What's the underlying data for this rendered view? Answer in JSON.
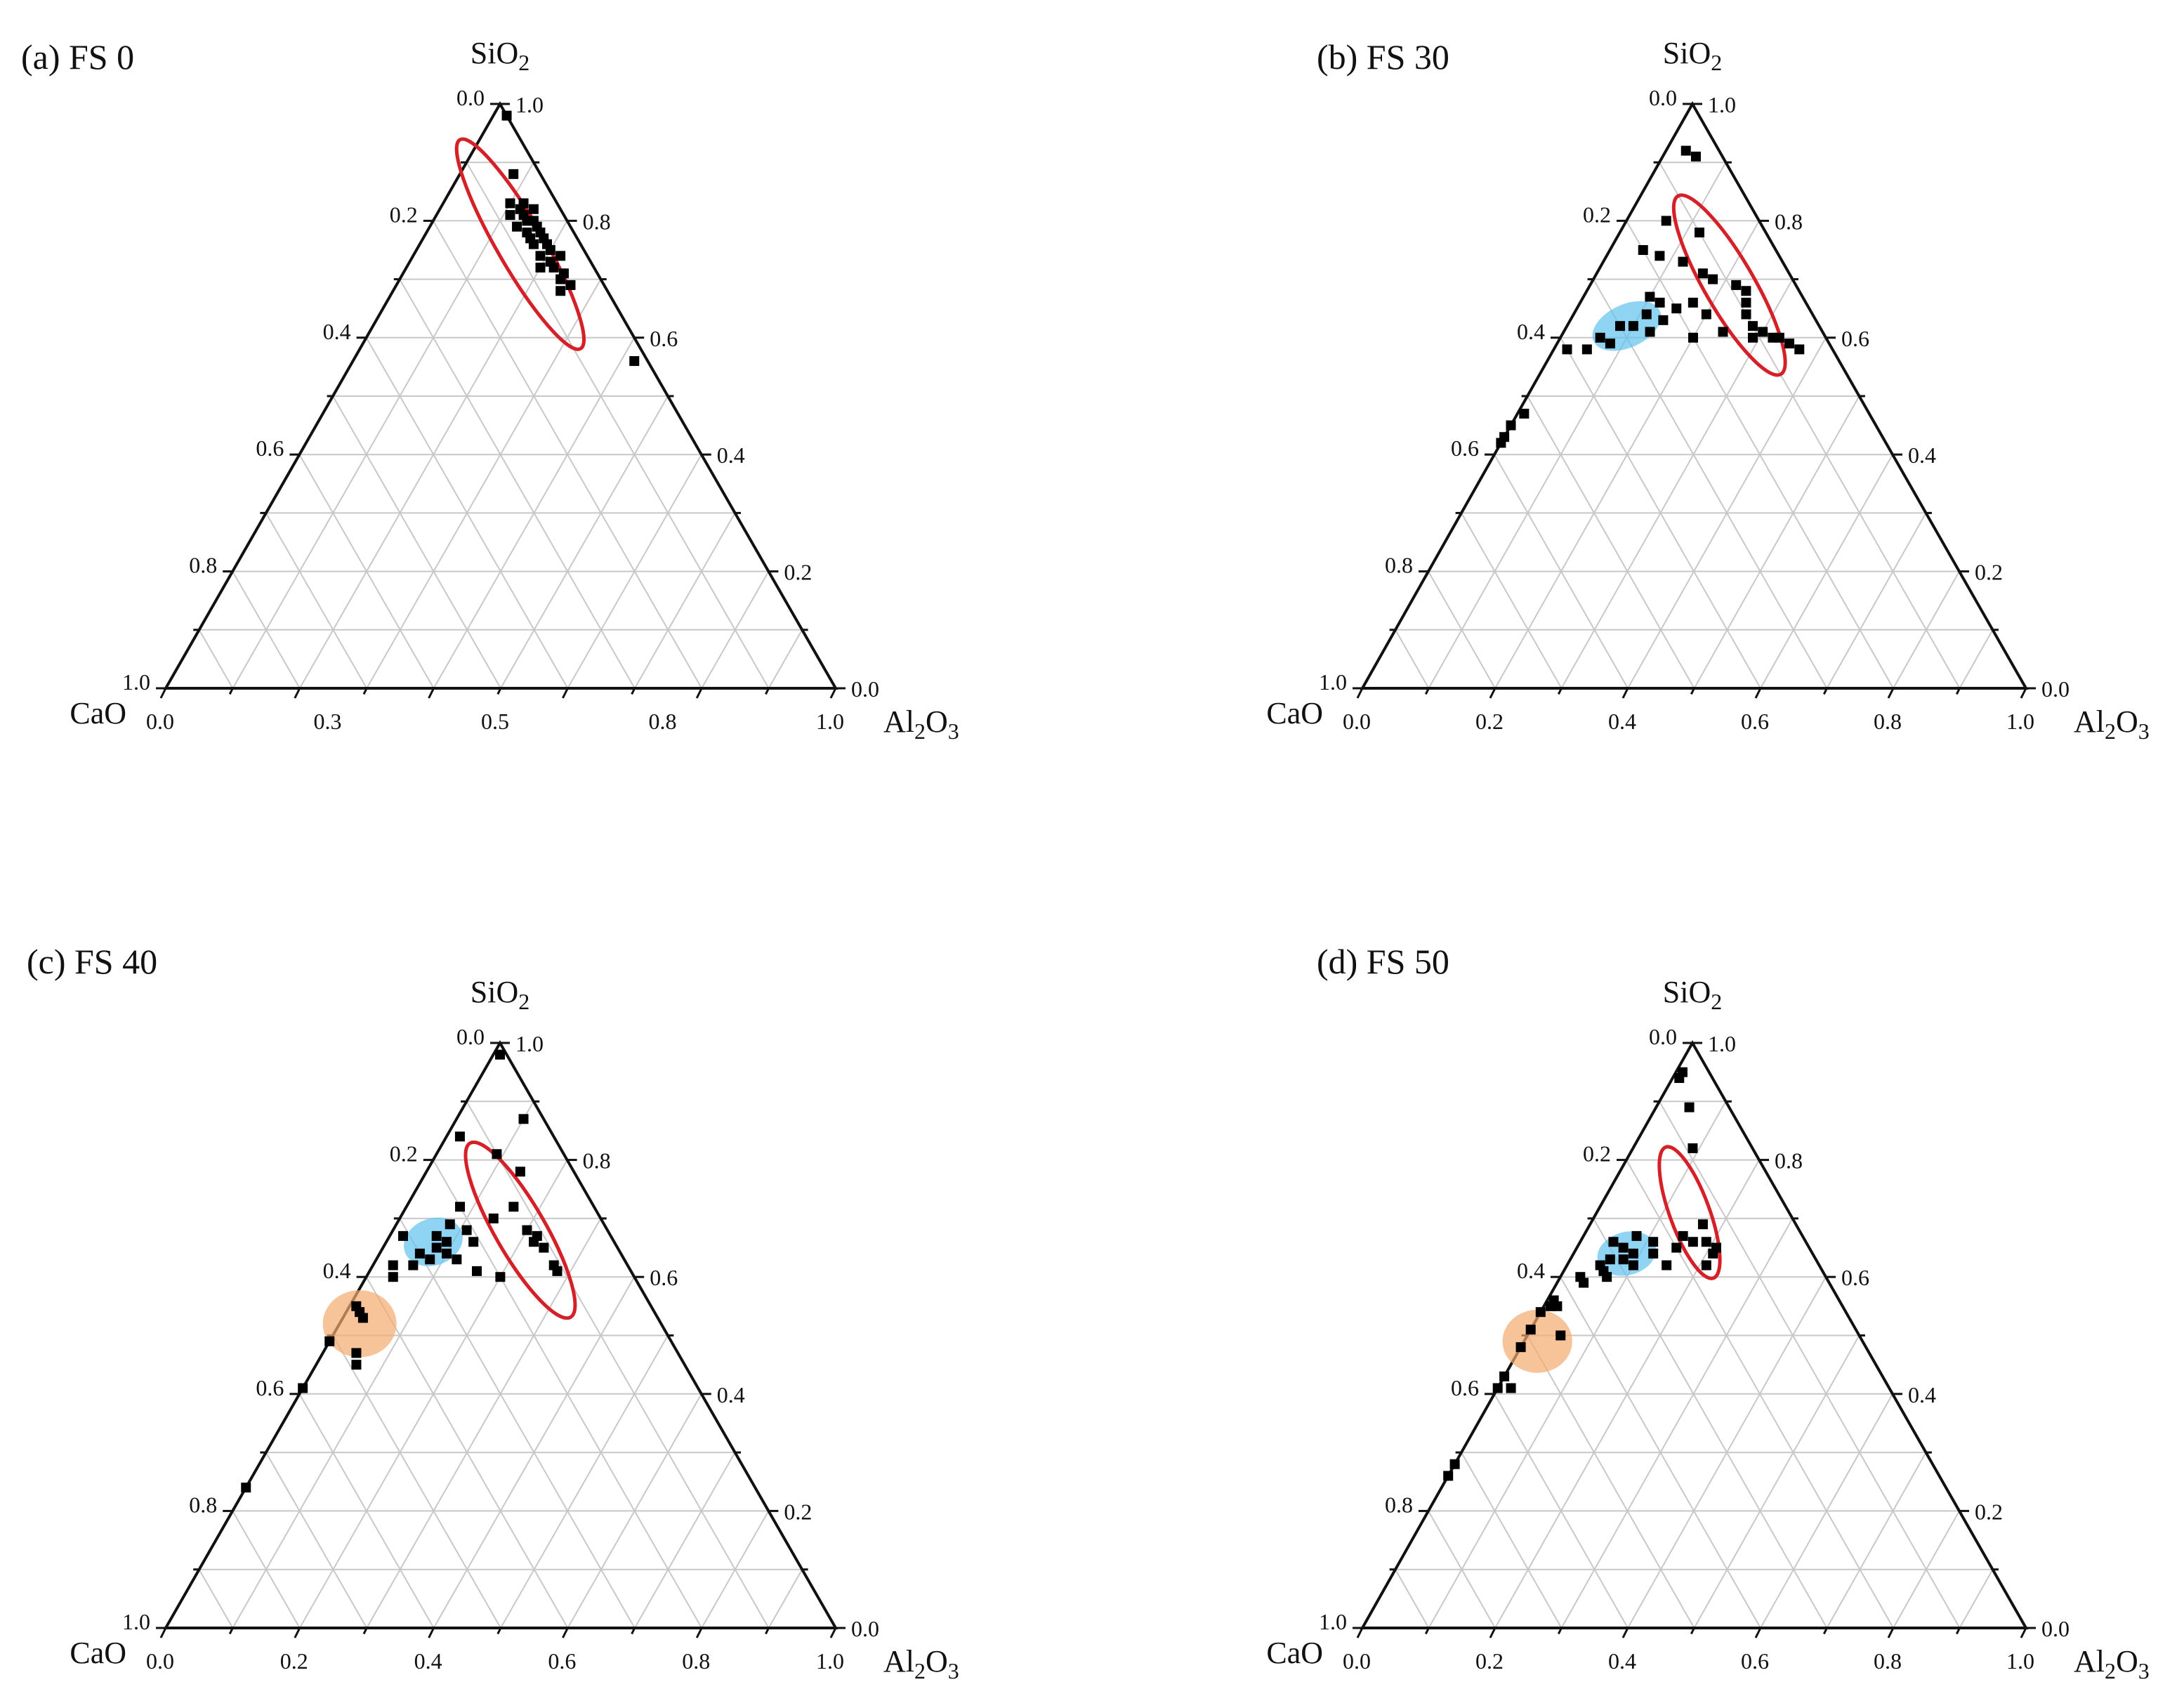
{
  "panel_titles": [
    "(a) FS 0",
    "(b) FS 30",
    "(c) FS 40",
    "(d) FS 50"
  ],
  "colors": {
    "point": "#000000",
    "red_ellipse": "#d62027",
    "blue_region": "#5fc3ee",
    "orange_region": "#f4a96c",
    "frame": "#111111",
    "grid": "#c8c8c8"
  },
  "chart_data": [
    {
      "type": "scatter",
      "subtype": "ternary",
      "title": "(a) FS 0",
      "axes": {
        "top": {
          "label": "SiO",
          "sub": "2"
        },
        "left": {
          "label": "CaO",
          "sub": ""
        },
        "right": {
          "label": "Al",
          "sub": "2",
          "label2": "O",
          "sub2": "3"
        }
      },
      "left_ticks": [
        "0.0",
        "0.2",
        "0.4",
        "0.6",
        "0.8",
        "1.0"
      ],
      "right_ticks": [
        "1.0",
        "0.8",
        "0.6",
        "0.4",
        "0.2",
        "0.0"
      ],
      "bottom_ticks": [
        "0.0",
        "0.3",
        "0.5",
        "0.8",
        "1.0"
      ],
      "bottom_tick_positions": [
        0.0,
        0.25,
        0.5,
        0.75,
        1.0
      ],
      "points": [
        {
          "SiO2": 0.98,
          "Al2O3": 0.02
        },
        {
          "SiO2": 0.88,
          "Al2O3": 0.08
        },
        {
          "SiO2": 0.83,
          "Al2O3": 0.1
        },
        {
          "SiO2": 0.83,
          "Al2O3": 0.12
        },
        {
          "SiO2": 0.82,
          "Al2O3": 0.12
        },
        {
          "SiO2": 0.81,
          "Al2O3": 0.13
        },
        {
          "SiO2": 0.82,
          "Al2O3": 0.14
        },
        {
          "SiO2": 0.8,
          "Al2O3": 0.14
        },
        {
          "SiO2": 0.8,
          "Al2O3": 0.15
        },
        {
          "SiO2": 0.79,
          "Al2O3": 0.16
        },
        {
          "SiO2": 0.78,
          "Al2O3": 0.15
        },
        {
          "SiO2": 0.78,
          "Al2O3": 0.17
        },
        {
          "SiO2": 0.77,
          "Al2O3": 0.18
        },
        {
          "SiO2": 0.76,
          "Al2O3": 0.17
        },
        {
          "SiO2": 0.76,
          "Al2O3": 0.19
        },
        {
          "SiO2": 0.75,
          "Al2O3": 0.2
        },
        {
          "SiO2": 0.74,
          "Al2O3": 0.19
        },
        {
          "SiO2": 0.73,
          "Al2O3": 0.21
        },
        {
          "SiO2": 0.72,
          "Al2O3": 0.22
        },
        {
          "SiO2": 0.71,
          "Al2O3": 0.24
        },
        {
          "SiO2": 0.7,
          "Al2O3": 0.24
        },
        {
          "SiO2": 0.69,
          "Al2O3": 0.26
        },
        {
          "SiO2": 0.68,
          "Al2O3": 0.25
        },
        {
          "SiO2": 0.81,
          "Al2O3": 0.11
        },
        {
          "SiO2": 0.79,
          "Al2O3": 0.13
        },
        {
          "SiO2": 0.77,
          "Al2O3": 0.16
        },
        {
          "SiO2": 0.74,
          "Al2O3": 0.22
        },
        {
          "SiO2": 0.72,
          "Al2O3": 0.2
        },
        {
          "SiO2": 0.56,
          "Al2O3": 0.42
        }
      ],
      "regions": [
        {
          "color": "red",
          "style": "outline",
          "center": {
            "SiO2": 0.76,
            "Al2O3": 0.15
          },
          "major": 0.36,
          "minor": 0.07,
          "angle_deg": 60
        }
      ]
    },
    {
      "type": "scatter",
      "subtype": "ternary",
      "title": "(b) FS 30",
      "axes": {
        "top": {
          "label": "SiO",
          "sub": "2"
        },
        "left": {
          "label": "CaO",
          "sub": ""
        },
        "right": {
          "label": "Al",
          "sub": "2",
          "label2": "O",
          "sub2": "3"
        }
      },
      "left_ticks": [
        "0.0",
        "0.2",
        "0.4",
        "0.6",
        "0.8",
        "1.0"
      ],
      "right_ticks": [
        "1.0",
        "0.8",
        "0.6",
        "0.4",
        "0.2",
        "0.0"
      ],
      "bottom_ticks": [
        "0.0",
        "0.2",
        "0.4",
        "0.6",
        "0.8",
        "1.0"
      ],
      "bottom_tick_positions": [
        0.0,
        0.2,
        0.4,
        0.6,
        0.8,
        1.0
      ],
      "points": [
        {
          "SiO2": 0.92,
          "Al2O3": 0.03
        },
        {
          "SiO2": 0.91,
          "Al2O3": 0.05
        },
        {
          "SiO2": 0.8,
          "Al2O3": 0.06
        },
        {
          "SiO2": 0.78,
          "Al2O3": 0.12
        },
        {
          "SiO2": 0.75,
          "Al2O3": 0.05
        },
        {
          "SiO2": 0.74,
          "Al2O3": 0.08
        },
        {
          "SiO2": 0.73,
          "Al2O3": 0.12
        },
        {
          "SiO2": 0.71,
          "Al2O3": 0.16
        },
        {
          "SiO2": 0.7,
          "Al2O3": 0.18
        },
        {
          "SiO2": 0.69,
          "Al2O3": 0.22
        },
        {
          "SiO2": 0.68,
          "Al2O3": 0.24
        },
        {
          "SiO2": 0.66,
          "Al2O3": 0.25
        },
        {
          "SiO2": 0.64,
          "Al2O3": 0.26
        },
        {
          "SiO2": 0.62,
          "Al2O3": 0.28
        },
        {
          "SiO2": 0.61,
          "Al2O3": 0.3
        },
        {
          "SiO2": 0.6,
          "Al2O3": 0.32
        },
        {
          "SiO2": 0.6,
          "Al2O3": 0.33
        },
        {
          "SiO2": 0.58,
          "Al2O3": 0.37
        },
        {
          "SiO2": 0.59,
          "Al2O3": 0.35
        },
        {
          "SiO2": 0.66,
          "Al2O3": 0.17
        },
        {
          "SiO2": 0.61,
          "Al2O3": 0.24
        },
        {
          "SiO2": 0.6,
          "Al2O3": 0.2
        },
        {
          "SiO2": 0.64,
          "Al2O3": 0.2
        },
        {
          "SiO2": 0.6,
          "Al2O3": 0.29
        },
        {
          "SiO2": 0.67,
          "Al2O3": 0.1
        },
        {
          "SiO2": 0.66,
          "Al2O3": 0.12
        },
        {
          "SiO2": 0.65,
          "Al2O3": 0.15
        },
        {
          "SiO2": 0.64,
          "Al2O3": 0.11
        },
        {
          "SiO2": 0.63,
          "Al2O3": 0.14
        },
        {
          "SiO2": 0.62,
          "Al2O3": 0.1
        },
        {
          "SiO2": 0.61,
          "Al2O3": 0.13
        },
        {
          "SiO2": 0.6,
          "Al2O3": 0.06
        },
        {
          "SiO2": 0.59,
          "Al2O3": 0.08
        },
        {
          "SiO2": 0.58,
          "Al2O3": 0.02
        },
        {
          "SiO2": 0.58,
          "Al2O3": 0.05
        },
        {
          "SiO2": 0.62,
          "Al2O3": 0.08
        },
        {
          "SiO2": 0.47,
          "Al2O3": 0.01
        },
        {
          "SiO2": 0.45,
          "Al2O3": 0.0
        },
        {
          "SiO2": 0.43,
          "Al2O3": 0.0
        },
        {
          "SiO2": 0.42,
          "Al2O3": 0.0
        }
      ],
      "regions": [
        {
          "color": "red",
          "style": "outline",
          "center": {
            "SiO2": 0.69,
            "Al2O3": 0.21
          },
          "major": 0.31,
          "minor": 0.075,
          "angle_deg": 60
        },
        {
          "color": "blue",
          "style": "filled",
          "center": {
            "SiO2": 0.62,
            "Al2O3": 0.09
          },
          "major": 0.11,
          "minor": 0.065,
          "angle_deg": -25
        }
      ]
    },
    {
      "type": "scatter",
      "subtype": "ternary",
      "title": "(c) FS 40",
      "axes": {
        "top": {
          "label": "SiO",
          "sub": "2"
        },
        "left": {
          "label": "CaO",
          "sub": ""
        },
        "right": {
          "label": "Al",
          "sub": "2",
          "label2": "O",
          "sub2": "3"
        }
      },
      "left_ticks": [
        "0.0",
        "0.2",
        "0.4",
        "0.6",
        "0.8",
        "1.0"
      ],
      "right_ticks": [
        "1.0",
        "0.8",
        "0.6",
        "0.4",
        "0.2",
        "0.0"
      ],
      "bottom_ticks": [
        "0.0",
        "0.2",
        "0.4",
        "0.6",
        "0.8",
        "1.0"
      ],
      "bottom_tick_positions": [
        0.0,
        0.2,
        0.4,
        0.6,
        0.8,
        1.0
      ],
      "points": [
        {
          "SiO2": 0.98,
          "Al2O3": 0.01
        },
        {
          "SiO2": 0.87,
          "Al2O3": 0.1
        },
        {
          "SiO2": 0.84,
          "Al2O3": 0.02
        },
        {
          "SiO2": 0.81,
          "Al2O3": 0.09
        },
        {
          "SiO2": 0.78,
          "Al2O3": 0.14
        },
        {
          "SiO2": 0.72,
          "Al2O3": 0.16
        },
        {
          "SiO2": 0.7,
          "Al2O3": 0.14
        },
        {
          "SiO2": 0.68,
          "Al2O3": 0.2
        },
        {
          "SiO2": 0.67,
          "Al2O3": 0.22
        },
        {
          "SiO2": 0.66,
          "Al2O3": 0.22
        },
        {
          "SiO2": 0.65,
          "Al2O3": 0.24
        },
        {
          "SiO2": 0.62,
          "Al2O3": 0.27
        },
        {
          "SiO2": 0.61,
          "Al2O3": 0.28
        },
        {
          "SiO2": 0.61,
          "Al2O3": 0.16
        },
        {
          "SiO2": 0.6,
          "Al2O3": 0.2
        },
        {
          "SiO2": 0.67,
          "Al2O3": 0.02
        },
        {
          "SiO2": 0.72,
          "Al2O3": 0.08
        },
        {
          "SiO2": 0.69,
          "Al2O3": 0.08
        },
        {
          "SiO2": 0.67,
          "Al2O3": 0.07
        },
        {
          "SiO2": 0.66,
          "Al2O3": 0.09
        },
        {
          "SiO2": 0.65,
          "Al2O3": 0.08
        },
        {
          "SiO2": 0.64,
          "Al2O3": 0.1
        },
        {
          "SiO2": 0.66,
          "Al2O3": 0.13
        },
        {
          "SiO2": 0.64,
          "Al2O3": 0.06
        },
        {
          "SiO2": 0.63,
          "Al2O3": 0.08
        },
        {
          "SiO2": 0.63,
          "Al2O3": 0.12
        },
        {
          "SiO2": 0.68,
          "Al2O3": 0.11
        },
        {
          "SiO2": 0.62,
          "Al2O3": 0.06
        },
        {
          "SiO2": 0.6,
          "Al2O3": 0.04
        },
        {
          "SiO2": 0.62,
          "Al2O3": 0.03
        },
        {
          "SiO2": 0.55,
          "Al2O3": 0.01
        },
        {
          "SiO2": 0.54,
          "Al2O3": 0.02
        },
        {
          "SiO2": 0.53,
          "Al2O3": 0.03
        },
        {
          "SiO2": 0.49,
          "Al2O3": 0.0
        },
        {
          "SiO2": 0.47,
          "Al2O3": 0.05
        },
        {
          "SiO2": 0.45,
          "Al2O3": 0.06
        },
        {
          "SiO2": 0.41,
          "Al2O3": 0.0
        },
        {
          "SiO2": 0.24,
          "Al2O3": 0.0
        }
      ],
      "regions": [
        {
          "color": "red",
          "style": "outline",
          "center": {
            "SiO2": 0.68,
            "Al2O3": 0.19
          },
          "major": 0.3,
          "minor": 0.075,
          "angle_deg": 60
        },
        {
          "color": "blue",
          "style": "filled",
          "center": {
            "SiO2": 0.66,
            "Al2O3": 0.07
          },
          "major": 0.09,
          "minor": 0.07,
          "angle_deg": -20
        },
        {
          "color": "orange",
          "style": "filled",
          "center": {
            "SiO2": 0.52,
            "Al2O3": 0.03
          },
          "major": 0.11,
          "minor": 0.1,
          "angle_deg": 0
        }
      ]
    },
    {
      "type": "scatter",
      "subtype": "ternary",
      "title": "(d) FS 50",
      "axes": {
        "top": {
          "label": "SiO",
          "sub": "2"
        },
        "left": {
          "label": "CaO",
          "sub": ""
        },
        "right": {
          "label": "Al",
          "sub": "2",
          "label2": "O",
          "sub2": "3"
        }
      },
      "left_ticks": [
        "0.0",
        "0.2",
        "0.4",
        "0.6",
        "0.8",
        "1.0"
      ],
      "right_ticks": [
        "1.0",
        "0.8",
        "0.6",
        "0.4",
        "0.2",
        "0.0"
      ],
      "bottom_ticks": [
        "0.0",
        "0.2",
        "0.4",
        "0.6",
        "0.8",
        "1.0"
      ],
      "bottom_tick_positions": [
        0.0,
        0.2,
        0.4,
        0.6,
        0.8,
        1.0
      ],
      "points": [
        {
          "SiO2": 0.95,
          "Al2O3": 0.01
        },
        {
          "SiO2": 0.94,
          "Al2O3": 0.01
        },
        {
          "SiO2": 0.89,
          "Al2O3": 0.05
        },
        {
          "SiO2": 0.82,
          "Al2O3": 0.09
        },
        {
          "SiO2": 0.69,
          "Al2O3": 0.17
        },
        {
          "SiO2": 0.67,
          "Al2O3": 0.15
        },
        {
          "SiO2": 0.66,
          "Al2O3": 0.17
        },
        {
          "SiO2": 0.66,
          "Al2O3": 0.19
        },
        {
          "SiO2": 0.65,
          "Al2O3": 0.15
        },
        {
          "SiO2": 0.65,
          "Al2O3": 0.21
        },
        {
          "SiO2": 0.64,
          "Al2O3": 0.21
        },
        {
          "SiO2": 0.62,
          "Al2O3": 0.15
        },
        {
          "SiO2": 0.62,
          "Al2O3": 0.21
        },
        {
          "SiO2": 0.66,
          "Al2O3": 0.05
        },
        {
          "SiO2": 0.67,
          "Al2O3": 0.08
        },
        {
          "SiO2": 0.65,
          "Al2O3": 0.07
        },
        {
          "SiO2": 0.64,
          "Al2O3": 0.09
        },
        {
          "SiO2": 0.63,
          "Al2O3": 0.06
        },
        {
          "SiO2": 0.63,
          "Al2O3": 0.08
        },
        {
          "SiO2": 0.62,
          "Al2O3": 0.05
        },
        {
          "SiO2": 0.62,
          "Al2O3": 0.1
        },
        {
          "SiO2": 0.61,
          "Al2O3": 0.06
        },
        {
          "SiO2": 0.6,
          "Al2O3": 0.03
        },
        {
          "SiO2": 0.6,
          "Al2O3": 0.07
        },
        {
          "SiO2": 0.59,
          "Al2O3": 0.04
        },
        {
          "SiO2": 0.64,
          "Al2O3": 0.12
        },
        {
          "SiO2": 0.66,
          "Al2O3": 0.11
        },
        {
          "SiO2": 0.56,
          "Al2O3": 0.01
        },
        {
          "SiO2": 0.55,
          "Al2O3": 0.02
        },
        {
          "SiO2": 0.55,
          "Al2O3": 0.01
        },
        {
          "SiO2": 0.54,
          "Al2O3": 0.0
        },
        {
          "SiO2": 0.51,
          "Al2O3": 0.0
        },
        {
          "SiO2": 0.48,
          "Al2O3": 0.0
        },
        {
          "SiO2": 0.5,
          "Al2O3": 0.05
        },
        {
          "SiO2": 0.43,
          "Al2O3": 0.0
        },
        {
          "SiO2": 0.41,
          "Al2O3": 0.02
        },
        {
          "SiO2": 0.41,
          "Al2O3": 0.0
        },
        {
          "SiO2": 0.28,
          "Al2O3": 0.0
        },
        {
          "SiO2": 0.26,
          "Al2O3": 0.0
        }
      ],
      "regions": [
        {
          "color": "red",
          "style": "outline",
          "center": {
            "SiO2": 0.71,
            "Al2O3": 0.14
          },
          "major": 0.21,
          "minor": 0.06,
          "angle_deg": 70
        },
        {
          "color": "blue",
          "style": "filled",
          "center": {
            "SiO2": 0.64,
            "Al2O3": 0.08
          },
          "major": 0.09,
          "minor": 0.065,
          "angle_deg": -15
        },
        {
          "color": "orange",
          "style": "filled",
          "center": {
            "SiO2": 0.49,
            "Al2O3": 0.02
          },
          "major": 0.105,
          "minor": 0.095,
          "angle_deg": 0
        }
      ]
    }
  ]
}
